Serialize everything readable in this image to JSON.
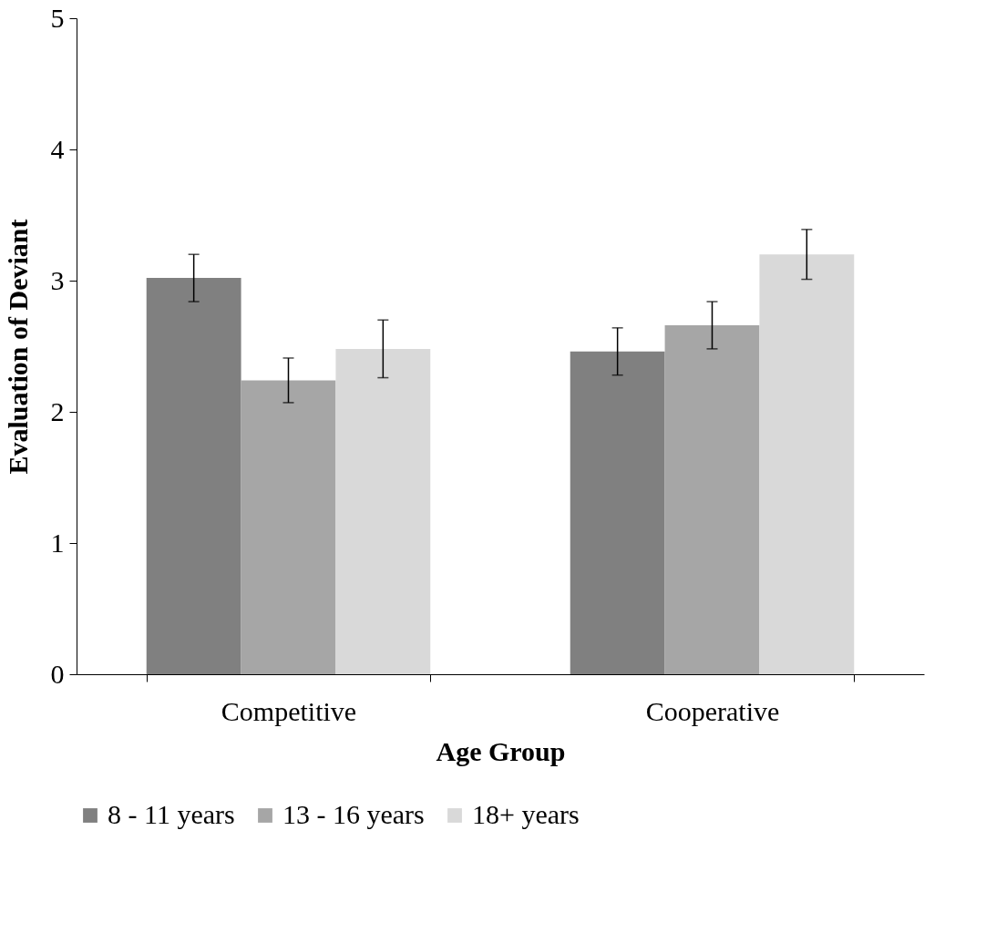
{
  "chart_data": {
    "type": "bar",
    "xlabel": "Age Group",
    "ylabel": "Evaluation of Deviant",
    "categories": [
      "Competitive",
      "Cooperative"
    ],
    "series": [
      {
        "name": "8 - 11 years",
        "color": "#808080",
        "values": [
          3.02,
          2.46
        ],
        "errors": [
          0.18,
          0.18
        ]
      },
      {
        "name": "13 - 16 years",
        "color": "#a6a6a6",
        "values": [
          2.24,
          2.66
        ],
        "errors": [
          0.17,
          0.18
        ]
      },
      {
        "name": "18+ years",
        "color": "#d9d9d9",
        "values": [
          2.48,
          3.2
        ],
        "errors": [
          0.22,
          0.19
        ]
      }
    ],
    "ylim": [
      0,
      5
    ],
    "yticks": [
      0,
      1,
      2,
      3,
      4,
      5
    ],
    "grid": false,
    "legend": "bottom"
  }
}
